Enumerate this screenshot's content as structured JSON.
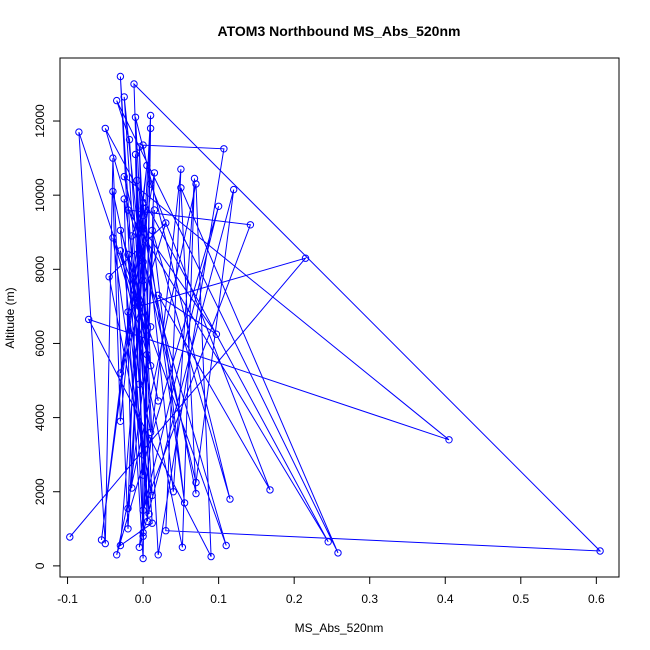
{
  "chart_data": {
    "type": "line",
    "title": "ATOM3 Northbound MS_Abs_520nm",
    "xlabel": "MS_Abs_520nm",
    "ylabel": "Altitude (m)",
    "xlim": [
      -0.11,
      0.63
    ],
    "ylim": [
      -300,
      13700
    ],
    "x_ticks": [
      -0.1,
      0.0,
      0.1,
      0.2,
      0.3,
      0.4,
      0.5,
      0.6
    ],
    "x_tick_labels": [
      "-0.1",
      "0.0",
      "0.1",
      "0.2",
      "0.3",
      "0.4",
      "0.5",
      "0.6"
    ],
    "y_ticks": [
      0,
      2000,
      4000,
      6000,
      8000,
      10000,
      12000
    ],
    "y_tick_labels": [
      "0",
      "2000",
      "4000",
      "6000",
      "8000",
      "10000",
      "12000"
    ],
    "grid": false,
    "marker": "open-circle",
    "color": "#0000ff",
    "series": [
      {
        "points": [
          [
            -0.097,
            780
          ],
          [
            0.215,
            8300
          ],
          [
            -0.005,
            7000
          ],
          [
            0.005,
            6200
          ],
          [
            -0.085,
            11700
          ],
          [
            -0.05,
            600
          ],
          [
            -0.04,
            11000
          ],
          [
            -0.02,
            1000
          ],
          [
            0.01,
            12150
          ],
          [
            0.0,
            900
          ],
          [
            -0.03,
            13200
          ],
          [
            0.006,
            1200
          ],
          [
            -0.012,
            13000
          ],
          [
            0.605,
            400
          ],
          [
            0.03,
            950
          ],
          [
            0.05,
            10700
          ],
          [
            -0.005,
            500
          ],
          [
            0.12,
            10150
          ],
          [
            0.07,
            2250
          ],
          [
            -0.025,
            10500
          ],
          [
            0.405,
            3400
          ],
          [
            -0.072,
            6650
          ],
          [
            0.09,
            250
          ],
          [
            0.07,
            10300
          ],
          [
            -0.035,
            300
          ],
          [
            0.1,
            9700
          ],
          [
            0.0,
            1500
          ],
          [
            0.142,
            9200
          ],
          [
            -0.02,
            9600
          ],
          [
            0.245,
            650
          ],
          [
            -0.05,
            11800
          ],
          [
            0.11,
            550
          ],
          [
            -0.03,
            8500
          ],
          [
            0.052,
            500
          ],
          [
            0.068,
            10450
          ],
          [
            0.04,
            2000
          ],
          [
            0.0,
            9800
          ],
          [
            0.055,
            1700
          ],
          [
            0.012,
            9050
          ],
          [
            0.115,
            1800
          ],
          [
            -0.01,
            12100
          ],
          [
            0.02,
            300
          ],
          [
            0.107,
            11250
          ],
          [
            0.0,
            11350
          ],
          [
            0.01,
            10300
          ],
          [
            0.168,
            2050
          ],
          [
            0.02,
            7300
          ],
          [
            0.097,
            6250
          ],
          [
            0.0,
            9100
          ],
          [
            0.07,
            1950
          ],
          [
            0.05,
            10200
          ],
          [
            0.258,
            350
          ],
          [
            -0.035,
            12550
          ],
          [
            -0.018,
            11500
          ],
          [
            0.012,
            1900
          ],
          [
            -0.045,
            7800
          ],
          [
            0.03,
            9250
          ],
          [
            -0.03,
            5200
          ],
          [
            0.015,
            10600
          ],
          [
            0.0,
            2450
          ],
          [
            -0.02,
            8400
          ],
          [
            0.02,
            4450
          ],
          [
            -0.04,
            10100
          ],
          [
            -0.03,
            3900
          ],
          [
            0.005,
            10800
          ],
          [
            -0.055,
            700
          ],
          [
            0.0,
            9450
          ],
          [
            -0.015,
            2100
          ],
          [
            -0.025,
            9900
          ],
          [
            0.005,
            5700
          ],
          [
            -0.01,
            11100
          ],
          [
            0.0,
            800
          ],
          [
            -0.008,
            10400
          ],
          [
            0.01,
            3600
          ],
          [
            -0.02,
            6850
          ],
          [
            0.0,
            200
          ],
          [
            0.01,
            11800
          ],
          [
            -0.005,
            4900
          ],
          [
            -0.015,
            8900
          ],
          [
            0.0,
            9650
          ],
          [
            0.008,
            1400
          ],
          [
            -0.03,
            9050
          ],
          [
            0.01,
            6450
          ],
          [
            -0.02,
            1550
          ],
          [
            -0.01,
            7100
          ],
          [
            0.0,
            8200
          ],
          [
            -0.03,
            550
          ],
          [
            0.012,
            1150
          ],
          [
            -0.025,
            12650
          ],
          [
            0.0,
            7700
          ],
          [
            -0.005,
            11300
          ],
          [
            0.01,
            5400
          ],
          [
            -0.04,
            8850
          ],
          [
            0.0,
            3000
          ],
          [
            0.015,
            9600
          ]
        ]
      }
    ]
  }
}
